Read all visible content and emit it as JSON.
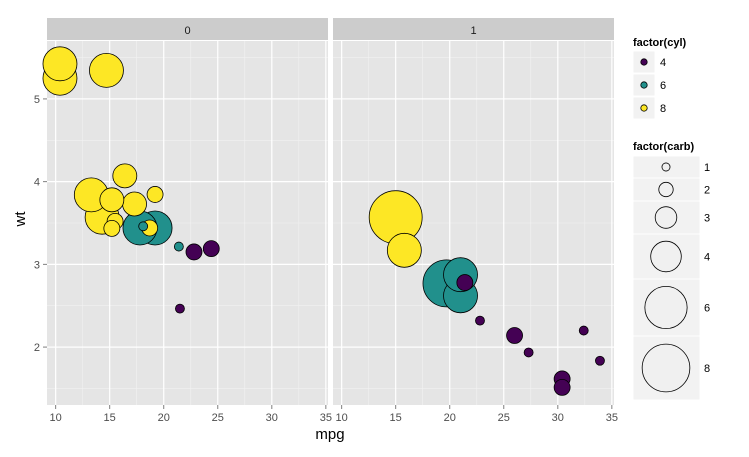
{
  "chart_data": {
    "type": "scatter",
    "xlabel": "mpg",
    "ylabel": "wt",
    "xlim": [
      9.2,
      35.2
    ],
    "ylim": [
      1.3,
      5.7
    ],
    "x_ticks": [
      10,
      15,
      20,
      25,
      30,
      35
    ],
    "y_ticks": [
      2,
      3,
      4,
      5
    ],
    "grid": true,
    "facets": [
      "0",
      "1"
    ],
    "legend_position": "right",
    "legend_color": {
      "title": "factor(cyl)",
      "items": [
        {
          "label": "4",
          "color": "#440154"
        },
        {
          "label": "6",
          "color": "#21908C"
        },
        {
          "label": "8",
          "color": "#FDE725"
        }
      ]
    },
    "legend_size": {
      "title": "factor(carb)",
      "items": [
        "1",
        "2",
        "3",
        "4",
        "6",
        "8"
      ]
    },
    "points": [
      {
        "facet": "0",
        "mpg": 21.4,
        "wt": 3.215,
        "cyl": "6",
        "carb": "1"
      },
      {
        "facet": "0",
        "mpg": 18.7,
        "wt": 3.44,
        "cyl": "8",
        "carb": "2"
      },
      {
        "facet": "0",
        "mpg": 18.1,
        "wt": 3.46,
        "cyl": "6",
        "carb": "1"
      },
      {
        "facet": "0",
        "mpg": 14.3,
        "wt": 3.57,
        "cyl": "8",
        "carb": "4"
      },
      {
        "facet": "0",
        "mpg": 24.4,
        "wt": 3.19,
        "cyl": "4",
        "carb": "2"
      },
      {
        "facet": "0",
        "mpg": 22.8,
        "wt": 3.15,
        "cyl": "4",
        "carb": "2"
      },
      {
        "facet": "0",
        "mpg": 19.2,
        "wt": 3.44,
        "cyl": "6",
        "carb": "4"
      },
      {
        "facet": "0",
        "mpg": 17.8,
        "wt": 3.44,
        "cyl": "6",
        "carb": "4"
      },
      {
        "facet": "0",
        "mpg": 16.4,
        "wt": 4.07,
        "cyl": "8",
        "carb": "3"
      },
      {
        "facet": "0",
        "mpg": 17.3,
        "wt": 3.73,
        "cyl": "8",
        "carb": "3"
      },
      {
        "facet": "0",
        "mpg": 15.2,
        "wt": 3.78,
        "cyl": "8",
        "carb": "3"
      },
      {
        "facet": "0",
        "mpg": 10.4,
        "wt": 5.25,
        "cyl": "8",
        "carb": "4"
      },
      {
        "facet": "0",
        "mpg": 10.4,
        "wt": 5.424,
        "cyl": "8",
        "carb": "4"
      },
      {
        "facet": "0",
        "mpg": 14.7,
        "wt": 5.345,
        "cyl": "8",
        "carb": "4"
      },
      {
        "facet": "0",
        "mpg": 21.5,
        "wt": 2.465,
        "cyl": "4",
        "carb": "1"
      },
      {
        "facet": "0",
        "mpg": 15.5,
        "wt": 3.52,
        "cyl": "8",
        "carb": "2"
      },
      {
        "facet": "0",
        "mpg": 15.2,
        "wt": 3.435,
        "cyl": "8",
        "carb": "2"
      },
      {
        "facet": "0",
        "mpg": 13.3,
        "wt": 3.84,
        "cyl": "8",
        "carb": "4"
      },
      {
        "facet": "0",
        "mpg": 19.2,
        "wt": 3.845,
        "cyl": "8",
        "carb": "2"
      },
      {
        "facet": "1",
        "mpg": 21.0,
        "wt": 2.62,
        "cyl": "6",
        "carb": "4"
      },
      {
        "facet": "1",
        "mpg": 21.0,
        "wt": 2.875,
        "cyl": "6",
        "carb": "4"
      },
      {
        "facet": "1",
        "mpg": 22.8,
        "wt": 2.32,
        "cyl": "4",
        "carb": "1"
      },
      {
        "facet": "1",
        "mpg": 32.4,
        "wt": 2.2,
        "cyl": "4",
        "carb": "1"
      },
      {
        "facet": "1",
        "mpg": 30.4,
        "wt": 1.615,
        "cyl": "4",
        "carb": "2"
      },
      {
        "facet": "1",
        "mpg": 33.9,
        "wt": 1.835,
        "cyl": "4",
        "carb": "1"
      },
      {
        "facet": "1",
        "mpg": 27.3,
        "wt": 1.935,
        "cyl": "4",
        "carb": "1"
      },
      {
        "facet": "1",
        "mpg": 26.0,
        "wt": 2.14,
        "cyl": "4",
        "carb": "2"
      },
      {
        "facet": "1",
        "mpg": 30.4,
        "wt": 1.513,
        "cyl": "4",
        "carb": "2"
      },
      {
        "facet": "1",
        "mpg": 15.8,
        "wt": 3.17,
        "cyl": "8",
        "carb": "4"
      },
      {
        "facet": "1",
        "mpg": 19.7,
        "wt": 2.77,
        "cyl": "6",
        "carb": "6"
      },
      {
        "facet": "1",
        "mpg": 15.0,
        "wt": 3.57,
        "cyl": "8",
        "carb": "8"
      },
      {
        "facet": "1",
        "mpg": 21.4,
        "wt": 2.78,
        "cyl": "4",
        "carb": "2"
      }
    ]
  }
}
